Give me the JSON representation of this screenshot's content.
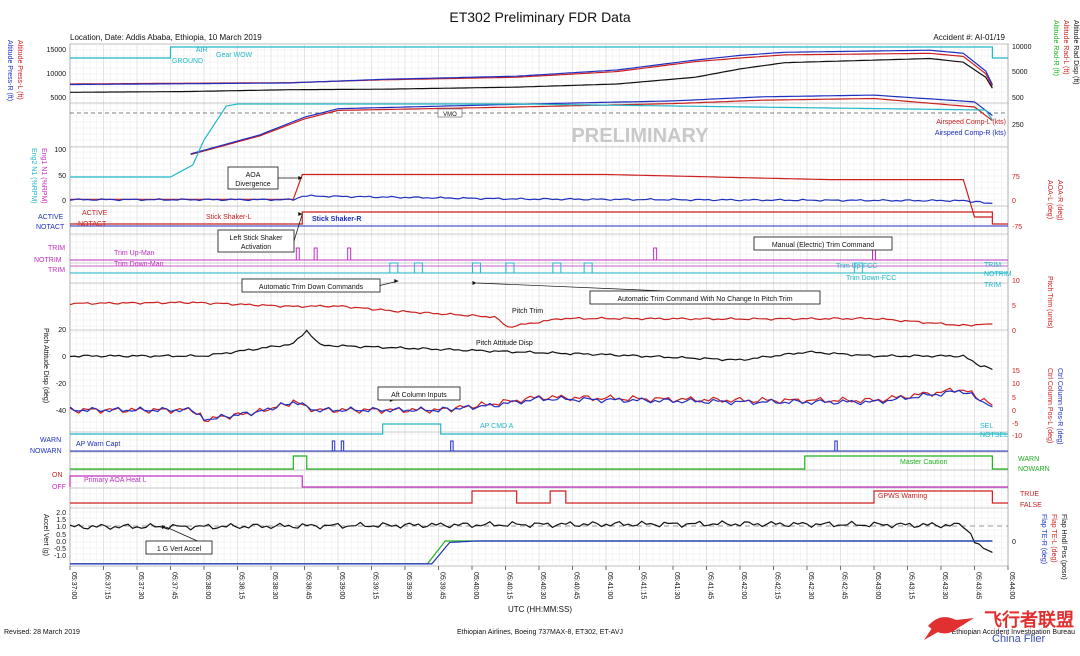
{
  "header": {
    "title": "ET302 Preliminary FDR Data",
    "location": "Location, Date: Addis Ababa, Ethiopia, 10 March 2019",
    "accident": "Accident #: AI-01/19",
    "watermark": "PRELIMINARY"
  },
  "footer": {
    "revised": "Revised: 28 March 2019",
    "aircraft": "Ethiopian Airlines, Boeing 737MAX-8, ET302, ET-AVJ",
    "bureau": "Ethiopian Accident Investigation Bureau",
    "logo_text": "飞行者联盟",
    "logo_url": "China Flier"
  },
  "colors": {
    "black": "#111111",
    "red": "#cc1f1f",
    "blue": "#1f2fc0",
    "cyan": "#20b8c8",
    "magenta": "#c030c0",
    "green": "#20b020"
  },
  "chart_data": {
    "type": "line",
    "x": {
      "label": "UTC (HH:MM:SS)",
      "ticks": [
        "05:37:00",
        "05:37:15",
        "05:37:30",
        "05:37:45",
        "05:38:00",
        "05:38:15",
        "05:38:30",
        "05:38:45",
        "05:39:00",
        "05:39:15",
        "05:39:30",
        "05:39:45",
        "05:40:00",
        "05:40:15",
        "05:40:30",
        "05:40:45",
        "05:41:00",
        "05:41:15",
        "05:41:30",
        "05:41:45",
        "05:42:00",
        "05:42:15",
        "05:42:30",
        "05:42:45",
        "05:43:00",
        "05:43:15",
        "05:43:30",
        "05:43:45",
        "05:44:00"
      ]
    },
    "left_axes": [
      {
        "label": "Altitude Press-R (ft)",
        "color": "#1f2fc0",
        "ticks": [
          "15000",
          "10000",
          "5000"
        ]
      },
      {
        "label": "Altitude Press-L (ft)",
        "color": "#cc1f1f"
      },
      {
        "label": "Eng2 N1 (%RPM)",
        "color": "#20b8c8",
        "ticks": [
          "100",
          "50",
          "0"
        ]
      },
      {
        "label": "Eng1 N1 (%RPM)",
        "color": "#c030c0"
      },
      {
        "label": "Pitch Attitude Disp (deg)",
        "color": "#111111",
        "ticks": [
          "20",
          "0",
          "-20",
          "-40"
        ]
      },
      {
        "label": "Accel Vert (g)",
        "color": "#111111",
        "ticks": [
          "2.0",
          "1.5",
          "1.0",
          "0.5",
          "0.0",
          "-0.5",
          "-1.0"
        ]
      }
    ],
    "right_axes": [
      {
        "label": "Altitude Rad Disp (ft)",
        "color": "#111111",
        "ticks": [
          "10000",
          "5000",
          "500"
        ]
      },
      {
        "label": "Altitude Rad-L (ft)",
        "color": "#cc1f1f"
      },
      {
        "label": "Altitude Rad-R (ft)",
        "color": "#20b020"
      },
      {
        "label": "AOA-R (deg)",
        "color": "#cc1f1f",
        "ticks": [
          "75",
          "0",
          "-75"
        ]
      },
      {
        "label": "AOA-L (deg)",
        "color": "#cc1f1f"
      },
      {
        "label": "Pitch Trim (units)",
        "color": "#cc1f1f",
        "ticks": [
          "10",
          "5",
          "0"
        ]
      },
      {
        "label": "Ctrl Column Pos-R (deg)",
        "color": "#1f2fc0",
        "ticks": [
          "15",
          "10",
          "5",
          "0",
          "-5",
          "-10"
        ]
      },
      {
        "label": "Ctrl Column Pos-L (deg)",
        "color": "#cc1f1f"
      },
      {
        "label": "Flap Hndl Pos (posn)",
        "color": "#111111",
        "ticks": [
          "0"
        ]
      },
      {
        "label": "Flap TE-L (deg)",
        "color": "#cc1f1f"
      },
      {
        "label": "Flap TE-R (deg)",
        "color": "#1f2fc0"
      }
    ],
    "speed_ticks": [
      "250"
    ],
    "series_labels": {
      "air": "AIR",
      "ground": "GROUND",
      "gear_wow": "Gear WOW",
      "vmo": "VMO",
      "airspeed_l": "Airspeed Comp-L (kts)",
      "airspeed_r": "Airspeed Comp-R (kts)",
      "active": "ACTIVE",
      "notact": "NOTACT",
      "stick_l": "Stick Shaker-L",
      "stick_r": "Stick Shaker-R",
      "trim": "TRIM",
      "notrim": "NOTRIM",
      "trim_up_man": "Trim Up-Man",
      "trim_down_man": "Trim Down-Man",
      "trim_up_fcc": "Trim Up-FCC",
      "trim_down_fcc": "Trim Down-FCC",
      "pitch_trim": "Pitch Trim",
      "pitch_att": "Pitch Attitude Disp",
      "ap_cmd_a": "AP CMD A",
      "sel": "SEL",
      "notsel": "NOTSEL",
      "warn": "WARN",
      "nowarn": "NOWARN",
      "ap_warn": "AP Warn Capt",
      "master_caution": "Master Caution",
      "on": "ON",
      "off": "OFF",
      "aoa_heat": "Primary AOA Heat L",
      "gpws": "GPWS Warning",
      "true": "TRUE",
      "false": "FALSE"
    },
    "annotations": {
      "aoa_div": [
        "AOA",
        "Divergence"
      ],
      "stick_act": [
        "Left Stick Shaker",
        "Activation"
      ],
      "manual_trim": "Manual (Electric) Trim Command",
      "auto_trim_down": "Automatic Trim Down Commands",
      "auto_trim_nochange": "Automatic Trim Command With No Change In Pitch Trim",
      "aft_column": "Aft Column Inputs",
      "vert_accel": "1 G Vert Accel"
    },
    "grid": true,
    "series": [
      {
        "name": "Altitude Press-L (ft)",
        "x": [
          0,
          52,
          98,
          140,
          200,
          245,
          280,
          300,
          320,
          385,
          400,
          410,
          413
        ],
        "y": [
          7500,
          7650,
          7750,
          8300,
          8800,
          9900,
          11800,
          12500,
          13100,
          13400,
          12800,
          9500,
          7100
        ]
      },
      {
        "name": "Altitude Press-R (ft)",
        "x": [
          0,
          52,
          98,
          140,
          200,
          245,
          280,
          300,
          320,
          385,
          400,
          410,
          413
        ],
        "y": [
          7400,
          7550,
          7700,
          8400,
          9000,
          10200,
          12100,
          13000,
          13600,
          14000,
          13400,
          10000,
          7400
        ]
      },
      {
        "name": "Altitude Rad Disp (ft)",
        "x": [
          0,
          52,
          98,
          140,
          200,
          245,
          280,
          300,
          320,
          385,
          400,
          410,
          413
        ],
        "y": [
          5900,
          6050,
          6400,
          6500,
          6900,
          7500,
          8800,
          10400,
          11600,
          12400,
          11700,
          8800,
          6700
        ]
      },
      {
        "name": "Airspeed Comp-L (kts)",
        "x": [
          54,
          85,
          105,
          120,
          200,
          270,
          310,
          360,
          405,
          413
        ],
        "y": [
          160,
          215,
          265,
          290,
          300,
          310,
          320,
          325,
          300,
          260
        ]
      },
      {
        "name": "Airspeed Comp-R (kts)",
        "x": [
          54,
          85,
          105,
          120,
          200,
          270,
          310,
          360,
          405,
          413
        ],
        "y": [
          162,
          218,
          270,
          295,
          308,
          318,
          330,
          335,
          315,
          275
        ]
      },
      {
        "name": "Eng2 N1 (%RPM)",
        "x": [
          0,
          45,
          55,
          60,
          70,
          75,
          200,
          410,
          413
        ],
        "y": [
          23,
          23,
          35,
          60,
          94,
          96,
          96,
          90,
          80
        ]
      },
      {
        "name": "AOA-L (deg)",
        "x": [
          0,
          100,
          104,
          240,
          340,
          400,
          405,
          413
        ],
        "y": [
          2,
          2,
          75,
          75,
          60,
          60,
          -50,
          -50
        ]
      },
      {
        "name": "AOA-R (deg)",
        "x": [
          0,
          100,
          104,
          200,
          300,
          400,
          413
        ],
        "y": [
          1,
          1,
          12,
          3,
          0,
          -2,
          -10
        ]
      },
      {
        "name": "Pitch Trim (units)",
        "x": [
          0,
          55,
          100,
          120,
          145,
          190,
          196,
          220,
          240,
          300,
          360,
          400,
          413
        ],
        "y": [
          5.3,
          5.5,
          4.7,
          4.8,
          3.8,
          2.6,
          0.6,
          2.3,
          2.3,
          2.2,
          2.3,
          0.9,
          1.2
        ]
      },
      {
        "name": "Pitch Attitude Disp (deg)",
        "x": [
          0,
          60,
          100,
          106,
          112,
          200,
          240,
          300,
          330,
          360,
          400,
          406,
          413
        ],
        "y": [
          0,
          0,
          9,
          19,
          8,
          3,
          1,
          -3,
          3,
          0,
          0,
          -6,
          -10
        ]
      },
      {
        "name": "Ctrl Column Pos-L (deg)",
        "x": [
          0,
          55,
          60,
          85,
          100,
          110,
          165,
          190,
          210,
          300,
          360,
          400,
          413
        ],
        "y": [
          0,
          0,
          -6,
          -1,
          5,
          0,
          0,
          4,
          8,
          6,
          6,
          13,
          3
        ]
      },
      {
        "name": "Ctrl Column Pos-R (deg)",
        "x": [
          0,
          55,
          60,
          85,
          100,
          110,
          165,
          190,
          210,
          300,
          360,
          400,
          413
        ],
        "y": [
          0,
          0,
          -6,
          -1,
          5,
          0,
          0,
          3,
          7,
          5,
          5,
          12,
          2
        ]
      },
      {
        "name": "Accel Vert (g)",
        "x": [
          0,
          60,
          100,
          200,
          300,
          400,
          405,
          413
        ],
        "y": [
          1.0,
          1.0,
          1.05,
          1.15,
          1.2,
          1.1,
          0.0,
          -0.8
        ]
      },
      {
        "name": "Flap TE-L (deg)",
        "x": [
          0,
          160,
          168,
          180,
          413
        ],
        "y": [
          -1.6,
          -1.6,
          0.0,
          0.0,
          0.0
        ]
      },
      {
        "name": "Flap TE-R (deg)",
        "x": [
          0,
          162,
          170,
          182,
          413
        ],
        "y": [
          -1.6,
          -1.6,
          -0.1,
          0.0,
          0.0
        ]
      }
    ],
    "discrete_series": [
      {
        "name": "Gear WOW",
        "values": [
          "GROUND 0-45 s",
          "AIR 45-413 s"
        ]
      },
      {
        "name": "Stick Shaker-L",
        "values": [
          "NOTACT 0-104 s",
          "ACTIVE 104-413 s"
        ]
      },
      {
        "name": "Trim Up-Man",
        "events_s": [
          102,
          110,
          125,
          262,
          360
        ]
      },
      {
        "name": "Trim Down-Man",
        "events_s": [
          104,
          114,
          123,
          128
        ]
      },
      {
        "name": "Trim Down-FCC",
        "events_s": [
          145,
          156,
          182,
          197,
          218,
          232,
          353
        ]
      },
      {
        "name": "AP CMD A",
        "values": [
          "NOTSEL 0-140 s",
          "SEL 140-166 s",
          "NOTSEL 166-408 s"
        ]
      },
      {
        "name": "AP Warn Capt",
        "events_s": [
          118,
          122,
          171,
          343
        ]
      },
      {
        "name": "Master Caution",
        "values": [
          "NOWARN 0-100 s",
          "WARN 100-106 s",
          "WARN 329-413 s"
        ]
      },
      {
        "name": "Primary AOA Heat L",
        "values": [
          "ON 0-104 s",
          "OFF 104-413 s"
        ]
      },
      {
        "name": "GPWS Warning",
        "events_s": [
          180,
          200,
          215,
          222,
          360
        ]
      }
    ]
  }
}
